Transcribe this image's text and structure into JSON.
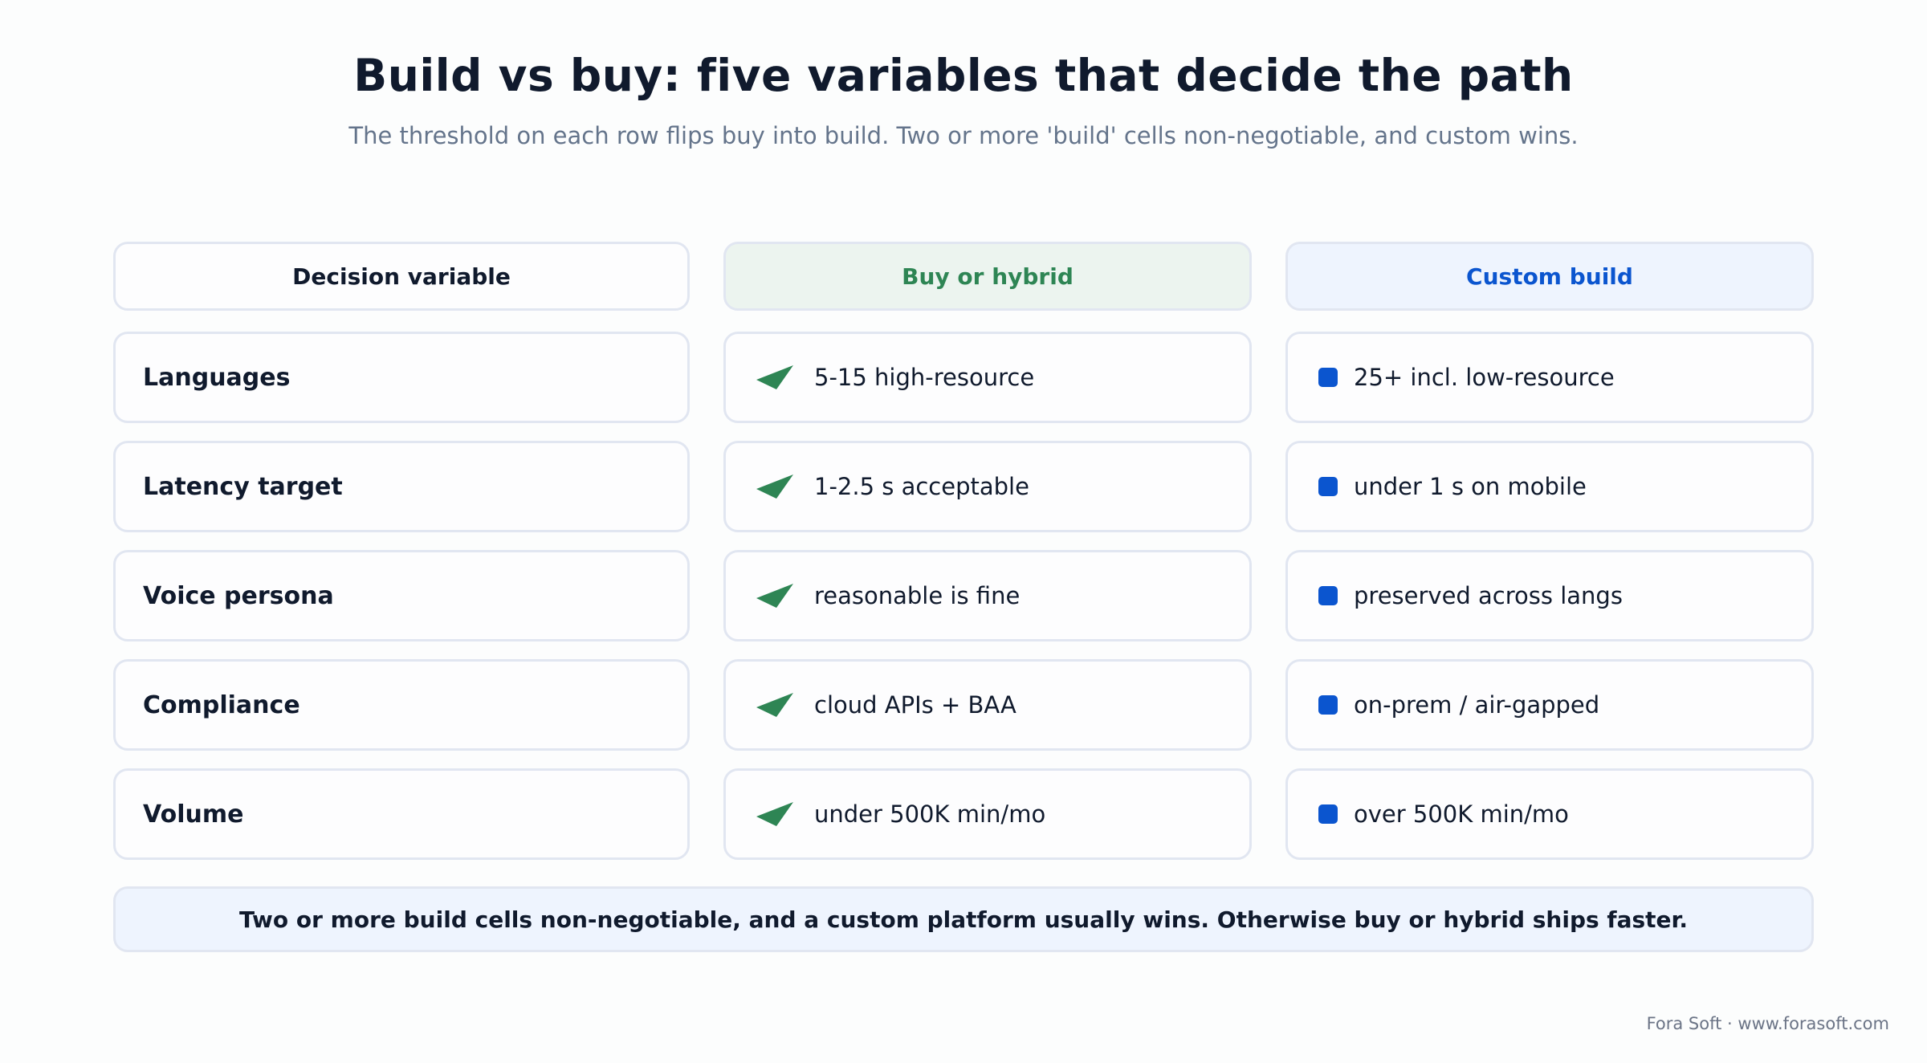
{
  "title": "Build vs buy: five variables that decide the path",
  "subtitle": "The threshold on each row flips buy into build. Two or more 'build' cells non-negotiable, and custom wins.",
  "headers": {
    "variable": "Decision variable",
    "buy": "Buy or hybrid",
    "build": "Custom build"
  },
  "rows": [
    {
      "variable": "Languages",
      "buy": "5-15 high-resource",
      "build": "25+ incl. low-resource"
    },
    {
      "variable": "Latency target",
      "buy": "1-2.5 s acceptable",
      "build": "under 1 s on mobile"
    },
    {
      "variable": "Voice persona",
      "buy": "reasonable is fine",
      "build": "preserved across langs"
    },
    {
      "variable": "Compliance",
      "buy": "cloud APIs + BAA",
      "build": "on-prem / air-gapped"
    },
    {
      "variable": "Volume",
      "buy": "under 500K min/mo",
      "build": "over 500K min/mo"
    }
  ],
  "footer": "Two or more build cells non-negotiable, and a custom platform usually wins. Otherwise buy or hybrid ships faster.",
  "credit": "Fora Soft · www.forasoft.com",
  "colors": {
    "buy_accent": "#2e8554",
    "build_accent": "#0b55cf",
    "buy_header_bg": "#ecf4ef",
    "build_header_bg": "#eef4fe"
  },
  "icons": {
    "buy": "send-arrow-icon",
    "build": "square-bullet-icon"
  }
}
